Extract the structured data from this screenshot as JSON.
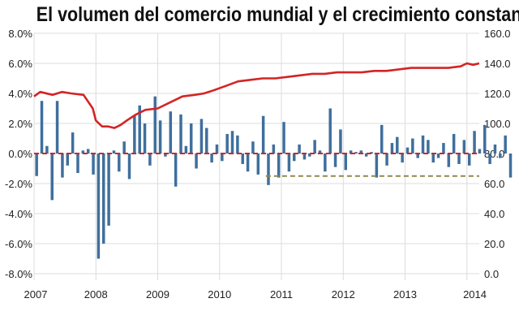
{
  "chart_data": {
    "type": "bar",
    "title": "El volumen del comercio mundial y el crecimiento constante",
    "x_tick_labels": [
      "2007",
      "2008",
      "2009",
      "2010",
      "2011",
      "2012",
      "2013",
      "2014"
    ],
    "x_range": [
      2007.0,
      2014.2
    ],
    "grid": true,
    "y_left": {
      "range": [
        -8.0,
        8.0
      ],
      "tick_values": [
        8.0,
        6.0,
        4.0,
        2.0,
        0.0,
        -2.0,
        -4.0,
        -6.0,
        -8.0
      ],
      "tick_labels": [
        "8.0%",
        "6.0%",
        "4.0%",
        "2.0%",
        "0.0%",
        "-2.0%",
        "-4.0%",
        "-6.0%",
        "-8.0%"
      ]
    },
    "y_right": {
      "range": [
        0.0,
        160.0
      ],
      "tick_values": [
        160,
        140,
        120,
        100,
        80,
        60,
        40,
        20,
        0
      ],
      "tick_labels": [
        "160.0",
        "140.0",
        "120.0",
        "100.0",
        "80.0",
        "60.0",
        "40.0",
        "20.0",
        "0.0"
      ]
    },
    "series": [
      {
        "type": "bar",
        "axis": "left",
        "color": "#3f6f9c",
        "x_start": 2007.0,
        "x_step": 0.0833,
        "values": [
          -1.5,
          3.5,
          0.5,
          -3.1,
          3.5,
          -1.6,
          -0.8,
          1.4,
          -1.3,
          0.2,
          0.3,
          -1.4,
          -7.0,
          -6.0,
          -4.8,
          0.2,
          -1.2,
          0.8,
          -1.7,
          2.5,
          3.2,
          2.0,
          -0.8,
          3.8,
          2.2,
          -0.2,
          2.8,
          -2.2,
          2.6,
          0.5,
          2.0,
          -1.0,
          2.3,
          1.7,
          -0.6,
          0.6,
          -0.5,
          1.3,
          1.5,
          1.2,
          -0.7,
          -1.2,
          0.8,
          -1.4,
          2.5,
          -2.1,
          0.6,
          -1.6,
          2.1,
          -1.2,
          -0.5,
          0.6,
          -0.4,
          -0.2,
          0.9,
          0.2,
          -1.2,
          3.0,
          -0.9,
          1.6,
          -1.1,
          0.2,
          0.1,
          0.2,
          -0.2,
          0.1,
          -1.6,
          1.9,
          -0.8,
          0.7,
          1.1,
          -0.6,
          0.4,
          1.0,
          -0.3,
          1.2,
          0.9,
          -0.6,
          -0.3,
          0.7,
          -0.9,
          1.3,
          -0.7,
          0.9,
          -0.8,
          1.5,
          0.3,
          1.9,
          -0.7,
          0.6,
          -0.3,
          1.2,
          -1.6
        ]
      },
      {
        "type": "line",
        "axis": "right",
        "color": "#d42424",
        "x": [
          2007.0,
          2007.1,
          2007.3,
          2007.45,
          2007.6,
          2007.8,
          2007.95,
          2008.0,
          2008.1,
          2008.2,
          2008.3,
          2008.4,
          2008.5,
          2008.65,
          2008.8,
          2009.0,
          2009.2,
          2009.4,
          2009.6,
          2009.75,
          2009.9,
          2010.1,
          2010.3,
          2010.5,
          2010.7,
          2010.9,
          2011.1,
          2011.3,
          2011.5,
          2011.7,
          2011.9,
          2012.1,
          2012.3,
          2012.5,
          2012.7,
          2012.9,
          2013.1,
          2013.3,
          2013.5,
          2013.7,
          2013.9,
          2014.0,
          2014.1,
          2014.2
        ],
        "values": [
          118,
          121,
          119,
          121,
          120,
          119,
          110,
          102,
          98,
          98,
          97,
          99,
          102,
          106,
          109,
          110,
          114,
          118,
          119,
          120,
          122,
          125,
          128,
          129,
          130,
          130,
          131,
          132,
          133,
          133,
          134,
          134,
          134,
          135,
          135,
          136,
          137,
          137,
          137,
          137,
          138,
          140,
          139,
          140
        ]
      },
      {
        "type": "line",
        "axis": "right",
        "color": "#d42424",
        "dashed": true,
        "x": [
          2007.0,
          2014.2
        ],
        "values": [
          80,
          80
        ]
      },
      {
        "type": "line",
        "axis": "right",
        "color": "#8b8a4e",
        "dashed": true,
        "x": [
          2010.75,
          2014.2
        ],
        "values": [
          65,
          65
        ]
      }
    ]
  }
}
